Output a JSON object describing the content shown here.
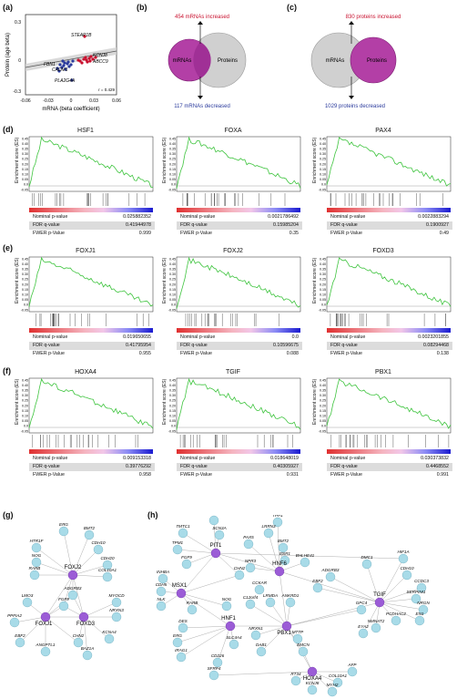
{
  "panels": {
    "a": "(a)",
    "b": "(b)",
    "c": "(c)",
    "d": "(d)",
    "e": "(e)",
    "f": "(f)",
    "g": "(g)",
    "h": "(h)"
  },
  "scatter": {
    "xlabel": "mRNA (beta coefficient)",
    "ylabel": "Protein (age beta)",
    "xticks": [
      "-0.06",
      "-0.03",
      "0",
      "0.03",
      "0.06"
    ],
    "yticks": [
      "0.3",
      "0",
      "-0.3"
    ],
    "annotation": "r = 0.429",
    "genes": [
      "STEAP1B",
      "KCNJ8",
      "FBN1",
      "ABCC9",
      "CADM1",
      "PLA2G4A"
    ],
    "colors": {
      "increased": "#c8102e",
      "decreased": "#2a3a9c"
    }
  },
  "venn_b": {
    "top": "454 mRNAs increased",
    "bottom": "117 mRNAs decreased",
    "left": "mRNAs",
    "right": "Proteins"
  },
  "venn_c": {
    "top": "830 proteins increased",
    "bottom": "1029 proteins decreased",
    "left": "mRNAs",
    "right": "Proteins"
  },
  "gsea_ylabel": "Enrichment score (ES)",
  "gsea_yticks": [
    "0.45",
    "0.40",
    "0.35",
    "0.30",
    "0.25",
    "0.20",
    "0.15",
    "0.10",
    "0.05",
    "0.0",
    "-0.05"
  ],
  "stat_labels": [
    "Nominal p-value",
    "FDR q-value",
    "FWER p-Value"
  ],
  "gsea": [
    {
      "name": "HSF1",
      "nominal": "0.025882352",
      "fdr": "0.41944978",
      "fwer": "0.999"
    },
    {
      "name": "FOXA",
      "nominal": "0.0021786492",
      "fdr": "0.15985204",
      "fwer": "0.35"
    },
    {
      "name": "PAX4",
      "nominal": "0.0022883294",
      "fdr": "0.1900927",
      "fwer": "0.49"
    },
    {
      "name": "FOXJ1",
      "nominal": "0.019650655",
      "fdr": "0.41795954",
      "fwer": "0.955"
    },
    {
      "name": "FOXJ2",
      "nominal": "0.0",
      "fdr": "0.10596675",
      "fwer": "0.088"
    },
    {
      "name": "FOXD3",
      "nominal": "0.0023201855",
      "fdr": "0.08294468",
      "fwer": "0.138"
    },
    {
      "name": "HOXA4",
      "nominal": "0.009153318",
      "fdr": "0.39776292",
      "fwer": "0.958"
    },
    {
      "name": "TGIF",
      "nominal": "0.018648019",
      "fdr": "0.40305927",
      "fwer": "0.931"
    },
    {
      "name": "PBX1",
      "nominal": "0.030373832",
      "fdr": "0.4468552",
      "fwer": "0.991"
    }
  ],
  "network_g": {
    "hubs": [
      "FOXJ2",
      "FOXJ1",
      "FOXD3"
    ],
    "genes": [
      "ERG",
      "BMT2",
      "HTR1F",
      "CDH10",
      "NOG",
      "CDH20",
      "RARB",
      "COL10A1",
      "LMO3",
      "ADGRB3",
      "FGF9",
      "MYOCD",
      "PPFIA2",
      "NRXN3",
      "EBF2",
      "CHN2",
      "KCNA4",
      "ANGPTL1",
      "BAZ1A"
    ]
  },
  "network_h": {
    "hubs": [
      "PIT1",
      "MSX1",
      "HNF6",
      "TGIF",
      "HNF1",
      "PBX1",
      "HOXA4"
    ],
    "genes": [
      "OPCML",
      "TPP1",
      "TMTC1",
      "SCN3A",
      "LRRN3",
      "PAX5",
      "TPM1",
      "BMT2",
      "FGF9",
      "NPR3",
      "ESR1",
      "BHLHE41",
      "CHN2",
      "INHBA",
      "ADGRB3",
      "DMC1",
      "HIF1A",
      "CDH5",
      "CCKAR",
      "EBF2",
      "CDH10",
      "NLK",
      "C12orf4",
      "CCDC3",
      "RARB",
      "SERPINI1",
      "NOG",
      "LRMDA",
      "ANKRD1",
      "GPC4",
      "NRGN",
      "EN1",
      "PCDHAC2",
      "NMNAT2",
      "EYA2",
      "DES",
      "NRXN1",
      "ERG",
      "SLC4A4",
      "MTTP",
      "DAB1",
      "EMCN",
      "IRAG1",
      "CD226",
      "SFRP4",
      "AFP",
      "COL10A1",
      "RT34",
      "KCNJ8",
      "MYH2",
      "LMO3"
    ]
  }
}
